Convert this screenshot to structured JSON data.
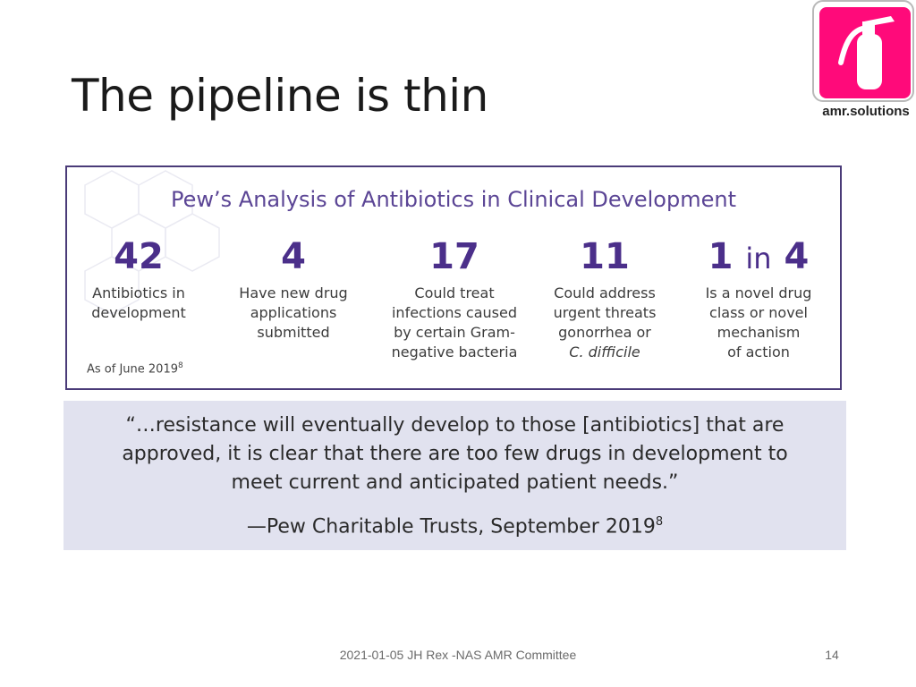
{
  "slide": {
    "title": "The pipeline is thin",
    "logo_text": "amr.solutions",
    "colors": {
      "logo_pink": "#ff0a7a",
      "pew_purple": "#4b2f8a",
      "quote_bg": "#e1e2ef"
    }
  },
  "pew": {
    "heading": "Pew’s Analysis of Antibiotics in Clinical Development",
    "stats": [
      {
        "number": "42",
        "lines": [
          "Antibiotics in",
          "development"
        ]
      },
      {
        "number": "4",
        "lines": [
          "Have new drug",
          "applications",
          "submitted"
        ]
      },
      {
        "number": "17",
        "lines": [
          "Could treat",
          "infections caused",
          "by certain Gram-",
          "negative bacteria"
        ]
      },
      {
        "number": "11",
        "lines": [
          "Could address",
          "urgent threats",
          "gonorrhea or",
          "C. difficile"
        ]
      },
      {
        "number": "1",
        "connector": "in",
        "number2": "4",
        "lines": [
          "Is a novel drug",
          "class or novel",
          "mechanism",
          "of action"
        ]
      }
    ],
    "as_of": "As of June 2019",
    "as_of_ref": "8"
  },
  "quote": {
    "lines": [
      "“…resistance will eventually develop to those [antibiotics] that are",
      "approved, it is clear that there are too few drugs in development to",
      "meet current and anticipated patient needs.”"
    ],
    "attribution": "—Pew Charitable Trusts, September 2019",
    "attribution_ref": "8"
  },
  "footer": {
    "text": "2021-01-05 JH Rex -NAS AMR Committee",
    "page_number": "14"
  }
}
